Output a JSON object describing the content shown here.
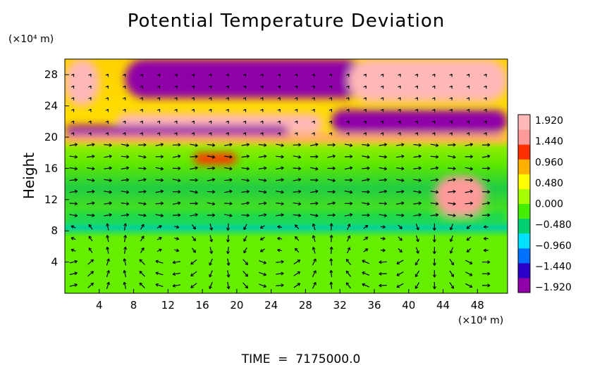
{
  "chart_data": {
    "type": "heatmap",
    "title": "Potential Temperature Deviation",
    "ylabel": "Height",
    "y_unit_label": "(×10⁴ m)",
    "x_unit_label": "(×10⁴ m)",
    "footer": "TIME  =  7175000.0",
    "xlim": [
      0,
      51.5
    ],
    "ylim": [
      0,
      30
    ],
    "x_ticks": [
      "4",
      "8",
      "12",
      "16",
      "20",
      "24",
      "28",
      "32",
      "36",
      "40",
      "44",
      "48"
    ],
    "y_ticks": [
      "4",
      "8",
      "12",
      "16",
      "20",
      "24",
      "28"
    ],
    "colorbar": {
      "min": -1.92,
      "max": 1.92,
      "labels": [
        "1.920",
        "1.440",
        "0.960",
        "0.480",
        "0.000",
        "−0.480",
        "−0.960",
        "−1.440",
        "−1.920"
      ],
      "colors": [
        "#8f00a8",
        "#2a00c8",
        "#0070ff",
        "#00e0ff",
        "#00d070",
        "#44ee00",
        "#a8ff00",
        "#ffff00",
        "#ffb000",
        "#ff3000",
        "#ff9a9a",
        "#ffb8b8"
      ]
    },
    "regions": [
      {
        "value": -1.9,
        "x0": 7,
        "x1": 35,
        "y0": 25,
        "y1": 30
      },
      {
        "value": 1.9,
        "x0": 0,
        "x1": 4,
        "y0": 24,
        "y1": 30
      },
      {
        "value": 1.9,
        "x0": 33,
        "x1": 51.5,
        "y0": 24.5,
        "y1": 30
      },
      {
        "value": 1.9,
        "x0": 6,
        "x1": 30,
        "y0": 20.5,
        "y1": 23
      },
      {
        "value": -1.9,
        "x0": 0,
        "x1": 26,
        "y0": 20,
        "y1": 21.5
      },
      {
        "value": -1.9,
        "x0": 31,
        "x1": 51.5,
        "y0": 20.5,
        "y1": 23.5
      },
      {
        "value": 1.6,
        "x0": 0,
        "x1": 51.5,
        "y0": 19.5,
        "y1": 20.3
      },
      {
        "value": -0.6,
        "x0": 0,
        "x1": 51.5,
        "y0": 9.2,
        "y1": 10.2
      },
      {
        "value": 1.2,
        "x0": 15,
        "x1": 20,
        "y0": 16.5,
        "y1": 18
      },
      {
        "value": 1.4,
        "x0": 43,
        "x1": 49,
        "y0": 10,
        "y1": 15
      }
    ]
  }
}
